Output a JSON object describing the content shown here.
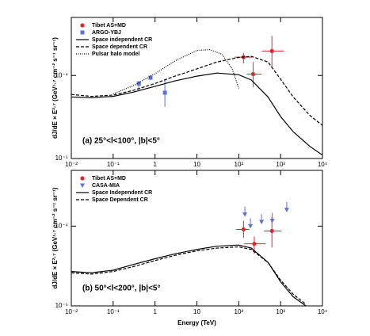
{
  "chart_data": [
    {
      "type": "line",
      "annotation": "(a) 25°<l<100°, |b|<5°",
      "ylabel": "dJ/dE × E²·⁷ (GeV¹·⁷ cm⁻² s⁻¹ sr⁻¹)",
      "xlog": true,
      "ylog": true,
      "xlim": [
        0.01,
        10000
      ],
      "ylim": [
        1e-05,
        0.0005
      ],
      "xticks": [
        {
          "value": 0.01,
          "label": "10⁻²"
        },
        {
          "value": 0.1,
          "label": "10⁻¹"
        },
        1,
        10,
        {
          "value": 100,
          "label": "10²"
        },
        {
          "value": 1000,
          "label": "10³"
        },
        {
          "value": 10000,
          "label": "10⁴"
        }
      ],
      "yticks": [
        {
          "value": 1e-05,
          "label": "10⁻⁵"
        },
        {
          "value": 0.0001,
          "label": "10⁻⁴"
        }
      ],
      "legend": "upper left",
      "series": [
        {
          "name": "Tibet AS+MD",
          "kind": "points",
          "marker": "circle",
          "color": "#e3242b",
          "x": [
            130,
            220,
            620
          ],
          "values": [
            0.000166,
            0.000104,
            0.000197
          ],
          "xlow": [
            79,
            155,
            355
          ],
          "xhigh": [
            210,
            354,
            1200
          ],
          "ylow": [
            0.000139,
            7.2e-05,
            0.000127
          ],
          "yhigh": [
            0.000188,
            0.000145,
            0.0003
          ]
        },
        {
          "name": "ARGO-YBJ",
          "kind": "points",
          "marker": "square",
          "color": "#5b6fe0",
          "x": [
            0.41,
            0.78,
            1.72
          ],
          "values": [
            8e-05,
            9.4e-05,
            6.2e-05
          ],
          "xlow": [
            0.41,
            0.78,
            1.72
          ],
          "xhigh": [
            0.41,
            0.78,
            1.72
          ],
          "ylow": [
            6.4e-05,
            8.8e-05,
            4.2e-05
          ],
          "yhigh": [
            8.6e-05,
            0.0001,
            9e-05
          ]
        },
        {
          "name": "Space independent CR",
          "kind": "line",
          "dash": "solid",
          "color": "#000000",
          "x": [
            0.01,
            0.03,
            0.1,
            0.3,
            1,
            3,
            10,
            30,
            100,
            200,
            500,
            1000,
            2000,
            5000,
            10000
          ],
          "values": [
            5.5e-05,
            5.4e-05,
            5.6e-05,
            6.3e-05,
            7.4e-05,
            8.6e-05,
            9.8e-05,
            0.000107,
            0.000102,
            8.8e-05,
            5.5e-05,
            3.2e-05,
            2.1e-05,
            1.4e-05,
            1.1e-05
          ]
        },
        {
          "name": "Space dependent CR",
          "kind": "line",
          "dash": "dashed",
          "color": "#000000",
          "x": [
            0.01,
            0.03,
            0.1,
            0.3,
            1,
            3,
            10,
            30,
            100,
            200,
            500,
            1000,
            2000,
            5000,
            10000
          ],
          "values": [
            5.9e-05,
            5.6e-05,
            5.8e-05,
            6.6e-05,
            8e-05,
            9.8e-05,
            0.00012,
            0.000145,
            0.000165,
            0.00017,
            0.000145,
            9e-05,
            5.5e-05,
            3.3e-05,
            2.5e-05
          ]
        },
        {
          "name": "Pulsar halo model",
          "kind": "line",
          "dash": "dotted",
          "color": "#000000",
          "x": [
            0.1,
            0.3,
            1,
            3,
            10,
            20,
            40,
            70,
            100
          ],
          "values": [
            6e-05,
            7.5e-05,
            0.000105,
            0.00015,
            0.0002,
            0.000205,
            0.00018,
            0.00012,
            7e-05
          ]
        }
      ]
    },
    {
      "type": "line",
      "annotation": "(b) 50°<l<200°, |b|<5°",
      "xlabel": "Energy (TeV)",
      "ylabel": "dJ/dE × E²·⁷ (GeV¹·⁷ cm⁻² s⁻¹ sr⁻¹)",
      "xlog": true,
      "ylog": true,
      "xlim": [
        0.01,
        10000
      ],
      "ylim": [
        1e-05,
        0.0005
      ],
      "xticks": [
        {
          "value": 0.01,
          "label": "10⁻²"
        },
        {
          "value": 0.1,
          "label": "10⁻¹"
        },
        1,
        10,
        {
          "value": 100,
          "label": "10²"
        },
        {
          "value": 1000,
          "label": "10³"
        },
        {
          "value": 10000,
          "label": "10⁴"
        }
      ],
      "yticks": [
        {
          "value": 1e-05,
          "label": "10⁻⁵"
        },
        {
          "value": 0.0001,
          "label": "10⁻⁴"
        }
      ],
      "legend": "upper left",
      "series": [
        {
          "name": "Tibet AS+MD",
          "kind": "points",
          "marker": "circle",
          "color": "#e3242b",
          "x": [
            130,
            235,
            620
          ],
          "values": [
            9.1e-05,
            6e-05,
            8.7e-05
          ],
          "xlow": [
            87,
            135,
            398
          ],
          "xhigh": [
            182,
            436,
            1050
          ],
          "ylow": [
            7.1e-05,
            4.5e-05,
            5.4e-05
          ],
          "yhigh": [
            0.000117,
            7.4e-05,
            0.000131
          ]
        },
        {
          "name": "CASA-MIA",
          "kind": "points",
          "marker": "triangle",
          "color": "#5b6fe0",
          "x": [
            140,
            190,
            350,
            630,
            1400
          ],
          "values": [
            0.00014,
            0.0001,
            0.000113,
            0.000117,
            0.00016
          ]
        },
        {
          "name": "Space Independent CR",
          "kind": "line",
          "dash": "solid",
          "color": "#000000",
          "x": [
            0.01,
            0.03,
            0.1,
            0.3,
            1,
            3,
            10,
            30,
            100,
            200,
            500,
            1000,
            2000,
            4000
          ],
          "values": [
            2.7e-05,
            2.6e-05,
            2.8e-05,
            3.3e-05,
            3.9e-05,
            4.5e-05,
            5.1e-05,
            5.6e-05,
            5.8e-05,
            5.3e-05,
            3.5e-05,
            2e-05,
            1.3e-05,
            1e-05
          ]
        },
        {
          "name": "Space Dependent CR",
          "kind": "line",
          "dash": "dashed",
          "color": "#000000",
          "x": [
            0.01,
            0.03,
            0.1,
            0.3,
            1,
            3,
            10,
            30,
            100,
            200,
            500,
            1000,
            2000,
            4000
          ],
          "values": [
            2.6e-05,
            2.5e-05,
            2.7e-05,
            3.1e-05,
            3.7e-05,
            4.3e-05,
            4.9e-05,
            5.3e-05,
            5.5e-05,
            5.1e-05,
            3.5e-05,
            2.1e-05,
            1.4e-05,
            1.05e-05
          ]
        }
      ]
    }
  ]
}
